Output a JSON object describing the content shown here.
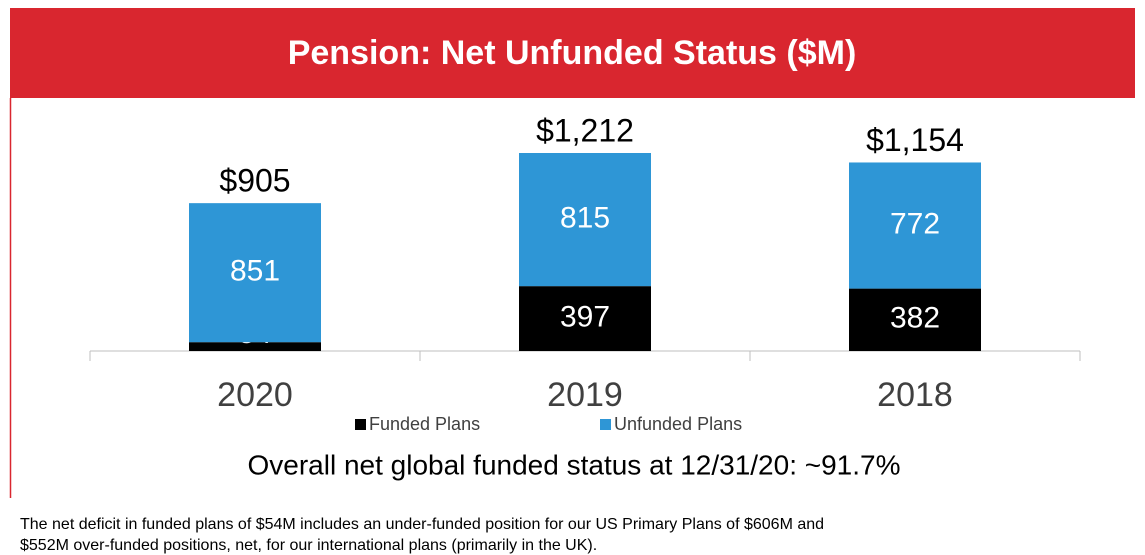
{
  "chart_data": {
    "type": "stacked_bar",
    "title": "Pension: Net Unfunded Status ($M)",
    "categories": [
      "2020",
      "2019",
      "2018"
    ],
    "series": [
      {
        "name": "Funded Plans",
        "color": "#000000",
        "label_color": "#ffffff",
        "values": [
          54,
          397,
          382
        ]
      },
      {
        "name": "Unfunded Plans",
        "color": "#2e96d6",
        "label_color": "#ffffff",
        "values": [
          851,
          815,
          772
        ]
      }
    ],
    "total_labels": [
      "$905",
      "$1,212",
      "$1,154"
    ],
    "annotation": "Overall net global funded status at 12/31/20:  ~91.7%",
    "footnote": [
      "The net deficit in funded plans of $54M includes an under-funded position for our US Primary Plans of $606M and",
      "$552M over-funded positions, net, for our international plans (primarily in the UK)."
    ]
  }
}
